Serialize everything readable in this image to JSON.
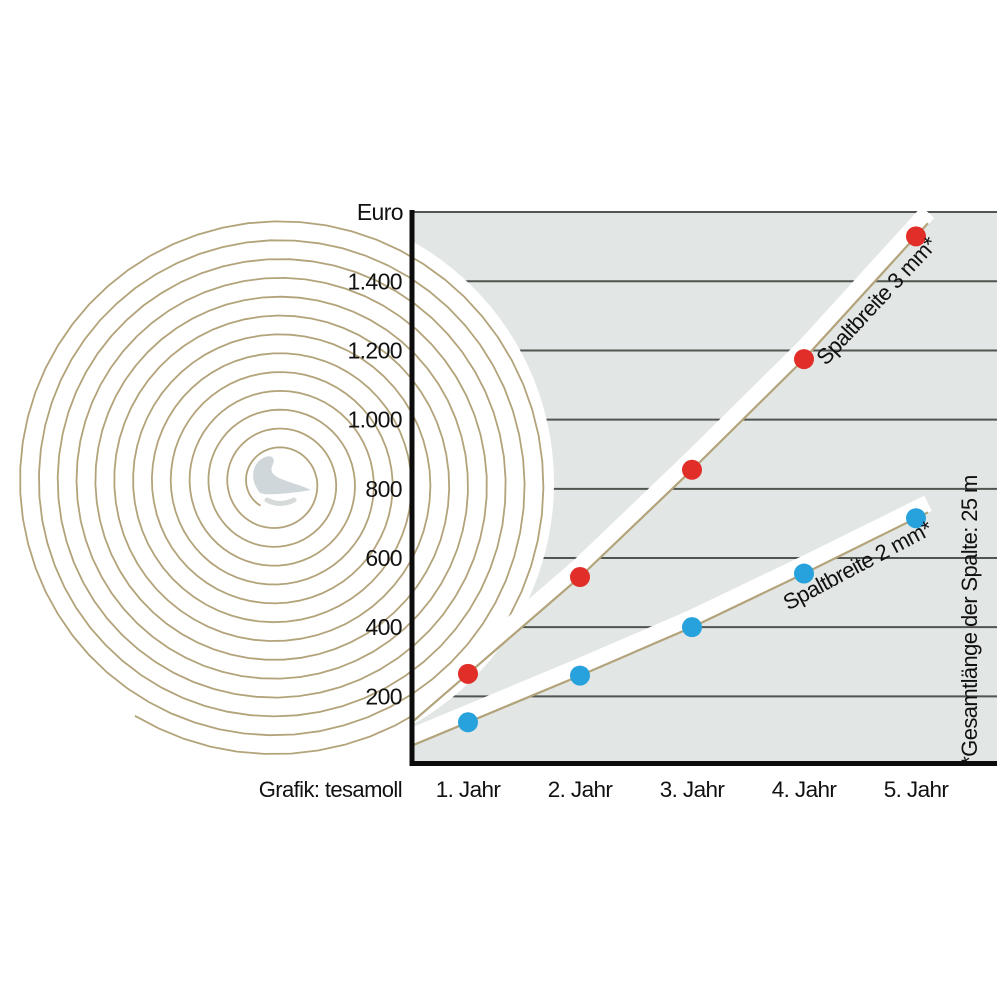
{
  "chart": {
    "y_axis_title": "Euro",
    "credit": "Grafik: tesamoll",
    "footnote": "*Gesamtlänge der Spalte: 25 m"
  },
  "chart_data": {
    "type": "scatter",
    "title": "",
    "categories": [
      "1. Jahr",
      "2. Jahr",
      "3. Jahr",
      "4. Jahr",
      "5. Jahr"
    ],
    "series": [
      {
        "name": "Spaltbreite 3 mm*",
        "color": "#e12e28",
        "values": [
          265,
          545,
          855,
          1175,
          1530
        ]
      },
      {
        "name": "Spaltbreite 2 mm*",
        "color": "#27a2dc",
        "values": [
          125,
          260,
          400,
          555,
          715
        ]
      }
    ],
    "xlabel": "",
    "ylabel": "Euro",
    "ylim": [
      0,
      1600
    ],
    "yticks": [
      {
        "value": 1400,
        "label": "1.400"
      },
      {
        "value": 1200,
        "label": "1.200"
      },
      {
        "value": 1000,
        "label": "1.000"
      },
      {
        "value": 800,
        "label": "800"
      },
      {
        "value": 600,
        "label": "600"
      },
      {
        "value": 400,
        "label": "400"
      },
      {
        "value": 200,
        "label": "200"
      }
    ],
    "grid": true,
    "legend_position": "inline-rotated-labels",
    "footnote": "*Gesamtlänge der Spalte: 25 m",
    "credit": "Grafik: tesamoll"
  },
  "colors": {
    "plot_background": "#e2e6e4",
    "gridline": "#50554f",
    "axis": "#0c0c0c",
    "roll_line": "#b3a37a",
    "band": "#ffffff",
    "series_3mm": "#e12e28",
    "series_2mm": "#27a2dc",
    "text": "#111111"
  }
}
